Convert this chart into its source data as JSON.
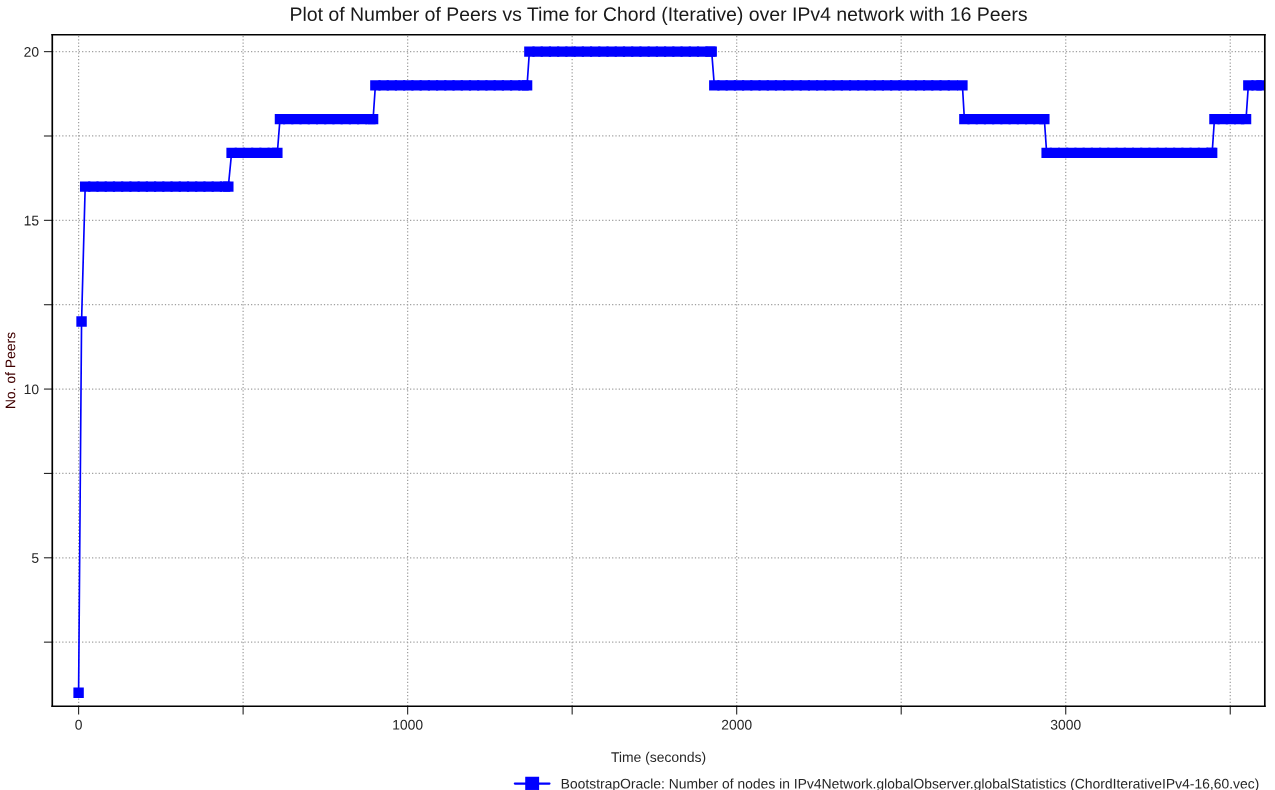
{
  "chart_data": {
    "type": "line",
    "title": "Plot of Number of Peers vs Time for Chord (Iterative) over IPv4 network with 16 Peers",
    "xlabel": "Time (seconds)",
    "ylabel": "No. of Peers",
    "xlim": [
      -80,
      3605
    ],
    "xticks": [
      0,
      {
        "value": 500,
        "label": null
      },
      1000,
      {
        "value": 1500,
        "label": null
      },
      2000,
      {
        "value": 2500,
        "label": null
      },
      3000,
      {
        "value": 3500,
        "label": null
      }
    ],
    "ylim": [
      0.6,
      20.5
    ],
    "yticks": [
      {
        "value": 2.5,
        "label": null
      },
      5,
      {
        "value": 7.5,
        "label": null
      },
      10,
      {
        "value": 12.5,
        "label": null
      },
      15,
      {
        "value": 17.5,
        "label": null
      },
      20
    ],
    "grid": true,
    "legend": "bottom right",
    "marker": "square",
    "line_style": "solid",
    "series": [
      {
        "name": "BootstrapOracle: Number of nodes in IPv4Network.globalObserver.globalStatistics (ChordIterativeIPv4-16,60.vec)",
        "color": "#0000ff",
        "x": [
          0,
          9,
          20,
          45,
          70,
          95,
          120,
          145,
          170,
          195,
          220,
          245,
          270,
          295,
          320,
          345,
          370,
          395,
          420,
          445,
          455,
          465,
          490,
          515,
          540,
          565,
          590,
          604,
          612,
          637,
          662,
          687,
          712,
          737,
          762,
          787,
          812,
          837,
          862,
          887,
          895,
          902,
          927,
          952,
          977,
          1002,
          1027,
          1052,
          1077,
          1102,
          1127,
          1152,
          1177,
          1202,
          1227,
          1252,
          1277,
          1302,
          1327,
          1352,
          1363,
          1370,
          1395,
          1420,
          1445,
          1470,
          1495,
          1520,
          1545,
          1570,
          1595,
          1620,
          1645,
          1670,
          1695,
          1720,
          1745,
          1770,
          1795,
          1820,
          1845,
          1870,
          1895,
          1920,
          1924,
          1932,
          1957,
          1982,
          2007,
          2032,
          2057,
          2082,
          2107,
          2132,
          2157,
          2182,
          2207,
          2232,
          2257,
          2282,
          2307,
          2332,
          2357,
          2382,
          2407,
          2432,
          2457,
          2482,
          2507,
          2532,
          2557,
          2582,
          2607,
          2632,
          2657,
          2686,
          2692,
          2717,
          2742,
          2767,
          2792,
          2817,
          2842,
          2867,
          2892,
          2917,
          2935,
          2942,
          2967,
          2992,
          3017,
          3042,
          3067,
          3092,
          3117,
          3142,
          3167,
          3192,
          3217,
          3242,
          3267,
          3292,
          3317,
          3342,
          3367,
          3392,
          3417,
          3442,
          3445,
          3452,
          3477,
          3502,
          3527,
          3548,
          3555,
          3580,
          3595
        ],
        "values": [
          1,
          12,
          16,
          16,
          16,
          16,
          16,
          16,
          16,
          16,
          16,
          16,
          16,
          16,
          16,
          16,
          16,
          16,
          16,
          16,
          16,
          17,
          17,
          17,
          17,
          17,
          17,
          17,
          18,
          18,
          18,
          18,
          18,
          18,
          18,
          18,
          18,
          18,
          18,
          18,
          18,
          19,
          19,
          19,
          19,
          19,
          19,
          19,
          19,
          19,
          19,
          19,
          19,
          19,
          19,
          19,
          19,
          19,
          19,
          19,
          19,
          20,
          20,
          20,
          20,
          20,
          20,
          20,
          20,
          20,
          20,
          20,
          20,
          20,
          20,
          20,
          20,
          20,
          20,
          20,
          20,
          20,
          20,
          20,
          20,
          19,
          19,
          19,
          19,
          19,
          19,
          19,
          19,
          19,
          19,
          19,
          19,
          19,
          19,
          19,
          19,
          19,
          19,
          19,
          19,
          19,
          19,
          19,
          19,
          19,
          19,
          19,
          19,
          19,
          19,
          19,
          18,
          18,
          18,
          18,
          18,
          18,
          18,
          18,
          18,
          18,
          18,
          17,
          17,
          17,
          17,
          17,
          17,
          17,
          17,
          17,
          17,
          17,
          17,
          17,
          17,
          17,
          17,
          17,
          17,
          17,
          17,
          17,
          17,
          18,
          18,
          18,
          18,
          18,
          19,
          19,
          19
        ]
      }
    ]
  }
}
